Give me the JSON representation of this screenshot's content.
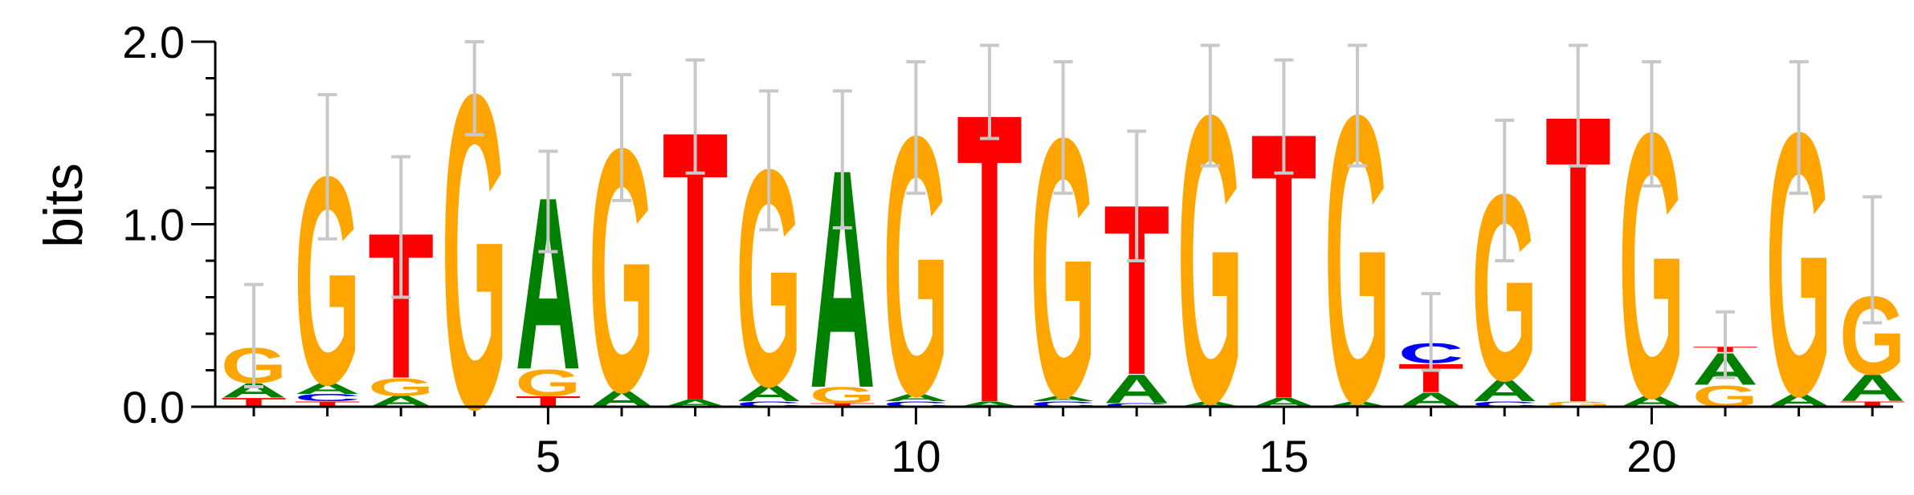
{
  "chart_data": {
    "type": "sequence-logo",
    "ylabel": "bits",
    "ylim": [
      0,
      2
    ],
    "y_ticks": [
      0,
      1,
      2
    ],
    "y_tick_labels": [
      "0.0",
      "1.0",
      "2.0"
    ],
    "x_ticks": [
      5,
      10,
      15,
      20
    ],
    "x_tick_labels": [
      "5",
      "10",
      "15",
      "20"
    ],
    "positions": 23,
    "colors": {
      "A": "#008000",
      "C": "#0000ff",
      "G": "#ffa500",
      "T": "#ff0000"
    },
    "columns": [
      {
        "pos": 1,
        "letters": [
          {
            "l": "T",
            "h": 0.05
          },
          {
            "l": "A",
            "h": 0.08
          },
          {
            "l": "G",
            "h": 0.2
          }
        ],
        "err": [
          0.11,
          0.67
        ]
      },
      {
        "pos": 2,
        "letters": [
          {
            "l": "T",
            "h": 0.03
          },
          {
            "l": "C",
            "h": 0.04
          },
          {
            "l": "A",
            "h": 0.06
          },
          {
            "l": "G",
            "h": 1.17
          }
        ],
        "err": [
          0.92,
          1.71
        ]
      },
      {
        "pos": 3,
        "letters": [
          {
            "l": "A",
            "h": 0.06
          },
          {
            "l": "G",
            "h": 0.1
          },
          {
            "l": "T",
            "h": 0.82
          }
        ],
        "err": [
          0.6,
          1.37
        ]
      },
      {
        "pos": 4,
        "letters": [
          {
            "l": "G",
            "h": 1.77
          }
        ],
        "err": [
          1.49,
          2.0
        ]
      },
      {
        "pos": 5,
        "letters": [
          {
            "l": "T",
            "h": 0.06
          },
          {
            "l": "G",
            "h": 0.15
          },
          {
            "l": "A",
            "h": 0.97
          }
        ],
        "err": [
          0.85,
          1.4
        ]
      },
      {
        "pos": 6,
        "letters": [
          {
            "l": "A",
            "h": 0.09
          },
          {
            "l": "G",
            "h": 1.37
          }
        ],
        "err": [
          1.13,
          1.82
        ]
      },
      {
        "pos": 7,
        "letters": [
          {
            "l": "A",
            "h": 0.04
          },
          {
            "l": "T",
            "h": 1.52
          }
        ],
        "err": [
          1.28,
          1.9
        ]
      },
      {
        "pos": 8,
        "letters": [
          {
            "l": "C",
            "h": 0.03
          },
          {
            "l": "A",
            "h": 0.09
          },
          {
            "l": "G",
            "h": 1.22
          }
        ],
        "err": [
          0.97,
          1.73
        ]
      },
      {
        "pos": 9,
        "letters": [
          {
            "l": "T",
            "h": 0.02
          },
          {
            "l": "G",
            "h": 0.09
          },
          {
            "l": "A",
            "h": 1.23
          }
        ],
        "err": [
          0.98,
          1.73
        ]
      },
      {
        "pos": 10,
        "letters": [
          {
            "l": "C",
            "h": 0.03
          },
          {
            "l": "A",
            "h": 0.04
          },
          {
            "l": "G",
            "h": 1.46
          }
        ],
        "err": [
          1.17,
          1.89
        ]
      },
      {
        "pos": 11,
        "letters": [
          {
            "l": "A",
            "h": 0.03
          },
          {
            "l": "T",
            "h": 1.63
          }
        ],
        "err": [
          1.47,
          1.98
        ]
      },
      {
        "pos": 12,
        "letters": [
          {
            "l": "C",
            "h": 0.03
          },
          {
            "l": "A",
            "h": 0.03
          },
          {
            "l": "G",
            "h": 1.46
          }
        ],
        "err": [
          1.17,
          1.89
        ]
      },
      {
        "pos": 13,
        "letters": [
          {
            "l": "C",
            "h": 0.02
          },
          {
            "l": "A",
            "h": 0.16
          },
          {
            "l": "T",
            "h": 0.96
          }
        ],
        "err": [
          0.8,
          1.51
        ]
      },
      {
        "pos": 14,
        "letters": [
          {
            "l": "A",
            "h": 0.03
          },
          {
            "l": "G",
            "h": 1.62
          }
        ],
        "err": [
          1.32,
          1.98
        ]
      },
      {
        "pos": 15,
        "letters": [
          {
            "l": "A",
            "h": 0.05
          },
          {
            "l": "T",
            "h": 1.5
          }
        ],
        "err": [
          1.28,
          1.9
        ]
      },
      {
        "pos": 16,
        "letters": [
          {
            "l": "A",
            "h": 0.03
          },
          {
            "l": "G",
            "h": 1.62
          }
        ],
        "err": [
          1.32,
          1.98
        ]
      },
      {
        "pos": 17,
        "letters": [
          {
            "l": "A",
            "h": 0.08
          },
          {
            "l": "T",
            "h": 0.16
          },
          {
            "l": "C",
            "h": 0.11
          }
        ],
        "err": [
          0.2,
          0.62
        ]
      },
      {
        "pos": 18,
        "letters": [
          {
            "l": "C",
            "h": 0.03
          },
          {
            "l": "A",
            "h": 0.12
          },
          {
            "l": "G",
            "h": 1.05
          }
        ],
        "err": [
          0.8,
          1.57
        ]
      },
      {
        "pos": 19,
        "letters": [
          {
            "l": "G",
            "h": 0.03
          },
          {
            "l": "T",
            "h": 1.62
          }
        ],
        "err": [
          1.32,
          1.98
        ]
      },
      {
        "pos": 20,
        "letters": [
          {
            "l": "A",
            "h": 0.06
          },
          {
            "l": "G",
            "h": 1.49
          }
        ],
        "err": [
          1.21,
          1.89
        ]
      },
      {
        "pos": 21,
        "letters": [
          {
            "l": "G",
            "h": 0.12
          },
          {
            "l": "A",
            "h": 0.18
          },
          {
            "l": "T",
            "h": 0.03
          }
        ],
        "err": [
          0.16,
          0.52
        ]
      },
      {
        "pos": 22,
        "letters": [
          {
            "l": "A",
            "h": 0.07
          },
          {
            "l": "G",
            "h": 1.48
          }
        ],
        "err": [
          1.17,
          1.89
        ]
      },
      {
        "pos": 23,
        "letters": [
          {
            "l": "T",
            "h": 0.03
          },
          {
            "l": "A",
            "h": 0.15
          },
          {
            "l": "G",
            "h": 0.44
          }
        ],
        "err": [
          0.46,
          1.15
        ]
      }
    ]
  }
}
